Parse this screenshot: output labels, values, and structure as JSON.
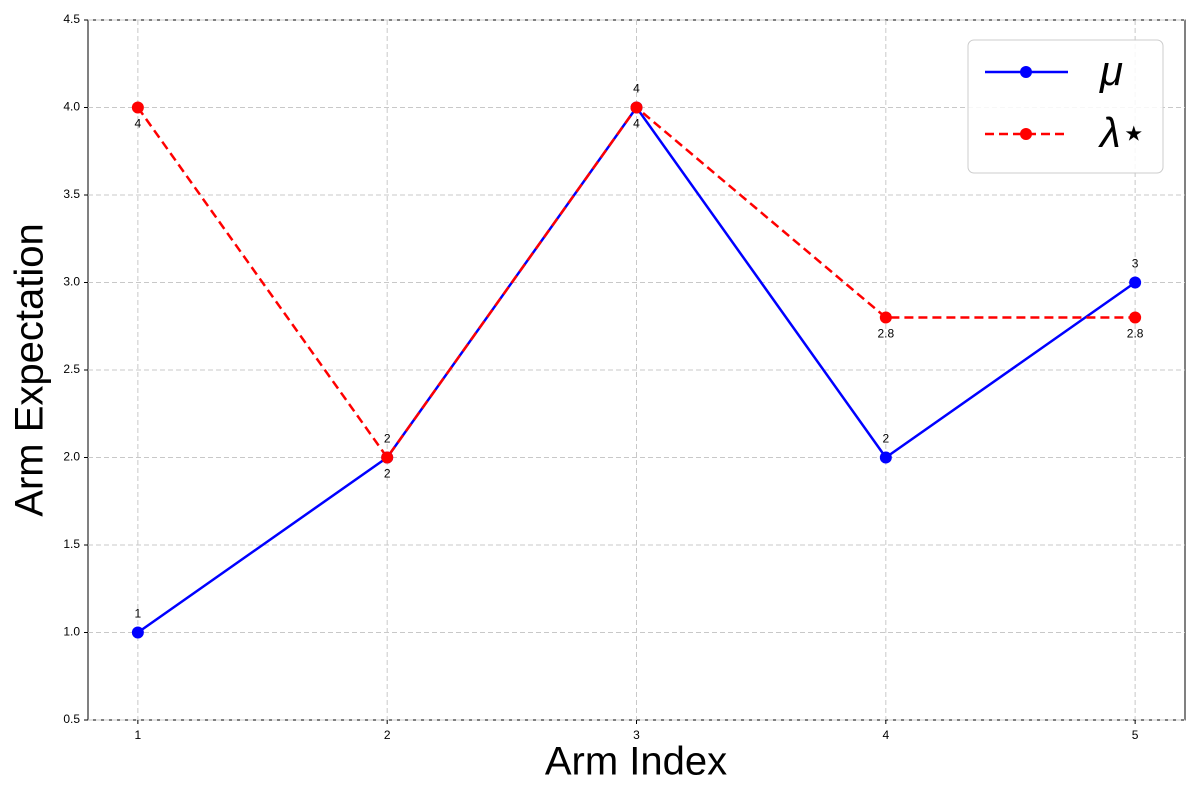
{
  "chart_data": {
    "type": "line",
    "xlabel": "Arm Index",
    "ylabel": "Arm Expectation",
    "x": [
      1,
      2,
      3,
      4,
      5
    ],
    "series": [
      {
        "name": "μ",
        "color": "#0000ff",
        "linestyle": "solid",
        "values": [
          1,
          2,
          4,
          2,
          3
        ]
      },
      {
        "name": "λ⋆",
        "color": "#ff0000",
        "linestyle": "dashed",
        "values": [
          4,
          2,
          4,
          2.8,
          2.8
        ]
      }
    ],
    "xlim": [
      0.8,
      5.2
    ],
    "xticks": [
      1,
      2,
      3,
      4,
      5
    ],
    "ylim": [
      0.5,
      4.5
    ],
    "yticks": [
      0.5,
      {
        "value": 1,
        "label": "1.0"
      },
      1.5,
      {
        "value": 2,
        "label": "2.0"
      },
      2.5,
      {
        "value": 3,
        "label": "3.0"
      },
      3.5,
      {
        "value": 4,
        "label": "4.0"
      },
      4.5
    ],
    "grid": true,
    "legend": "upper right"
  }
}
